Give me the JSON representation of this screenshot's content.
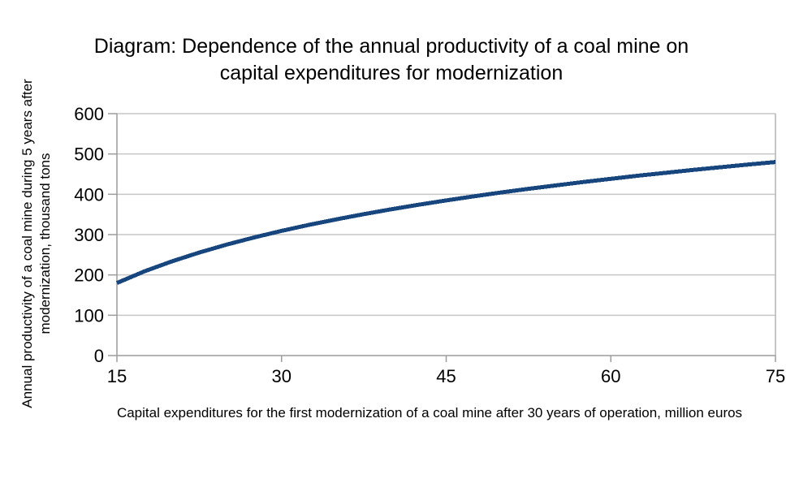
{
  "chart_data": {
    "type": "line",
    "title": "Diagram: Dependence of the annual productivity of a coal mine on capital expenditures for modernization",
    "xlabel": "Capital expenditures for the first modernization of a coal mine after 30 years of operation, million euros",
    "ylabel": "Annual productivity of a coal mine during 5 years after modernization, thousand tons",
    "x": [
      15,
      17.5,
      20,
      22.5,
      25,
      27.5,
      30,
      32.5,
      35,
      37.5,
      40,
      42.5,
      45,
      47.5,
      50,
      52.5,
      55,
      57.5,
      60,
      62.5,
      65,
      67.5,
      70,
      72.5,
      75
    ],
    "y": [
      180,
      208.7,
      233.6,
      255.6,
      275.2,
      293.0,
      309.2,
      324.1,
      337.9,
      350.8,
      362.8,
      374.1,
      384.7,
      394.8,
      404.4,
      413.5,
      422.1,
      430.5,
      438.4,
      446.1,
      453.3,
      460.4,
      467.1,
      473.7,
      480
    ],
    "xlim": [
      15,
      75
    ],
    "ylim": [
      0,
      600
    ],
    "x_ticks": [
      15,
      30,
      45,
      60,
      75
    ],
    "y_ticks": [
      0,
      100,
      200,
      300,
      400,
      500,
      600
    ],
    "grid": "horizontal",
    "legend": "none",
    "line_color": "#17457E",
    "axis_color": "#9C9C9C",
    "grid_color": "#C6C6C6",
    "border_color": "#B3B3B3",
    "text_color": "#000000",
    "background_color": "#FFFFFF"
  }
}
